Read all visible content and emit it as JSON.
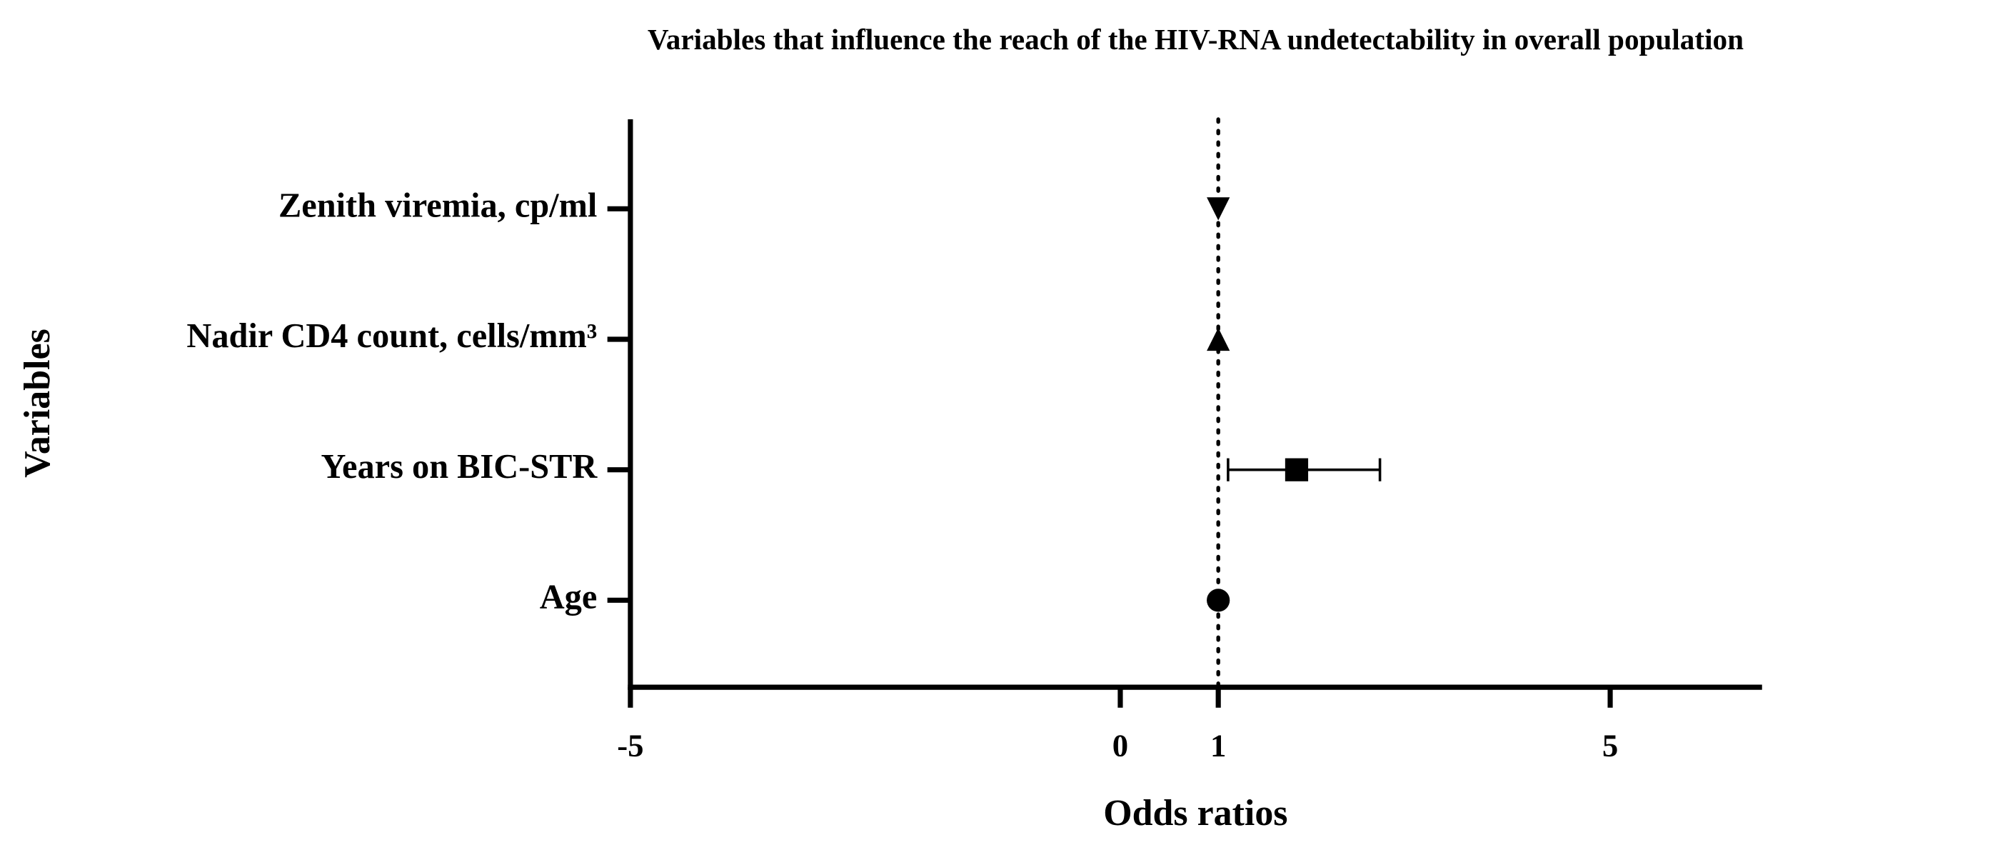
{
  "chart_data": {
    "type": "forest",
    "title": "Variables that influence the reach of the HIV-RNA undetectability in overall population",
    "x_label": "Odds ratios",
    "y_label": "Variables",
    "categories": [
      "Zenith viremia, cp/ml",
      "Nadir CD4 count, cells/mm³",
      "Years on BIC-STR",
      "Age"
    ],
    "values": [
      1.0,
      1.0,
      1.8,
      1.0
    ],
    "ci": [
      null,
      null,
      [
        1.1,
        2.65
      ],
      null
    ],
    "markers": [
      "triangle-down",
      "triangle-up",
      "square",
      "circle"
    ],
    "color": "#000000",
    "reference_line": 1,
    "xlim": [
      -5,
      6.55
    ],
    "xticks": [
      -5,
      0,
      1,
      5
    ]
  }
}
